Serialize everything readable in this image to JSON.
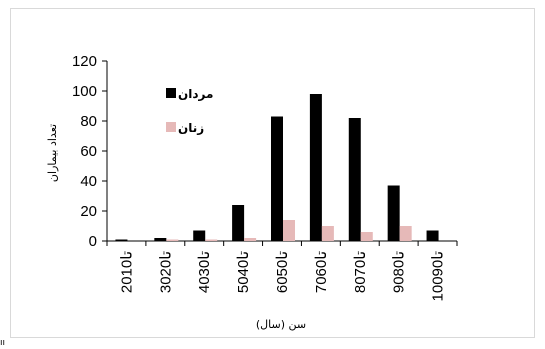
{
  "chart_data": {
    "type": "bar",
    "categories": [
      "20تا10",
      "30تا20",
      "40تا30",
      "50تا40",
      "60تا50",
      "70تا60",
      "80تا70",
      "90تا80",
      "100تا90"
    ],
    "series": [
      {
        "name": "مردان",
        "color": "#000000",
        "values": [
          1,
          2,
          7,
          24,
          83,
          98,
          82,
          37,
          7
        ]
      },
      {
        "name": "زنان",
        "color": "#e6b9b8",
        "values": [
          0,
          1,
          1,
          2,
          14,
          10,
          6,
          10,
          0
        ]
      }
    ],
    "yticks": [
      "0",
      "20",
      "40",
      "60",
      "80",
      "100",
      "120"
    ],
    "ylim": [
      0,
      120
    ],
    "xlabel": "سن (سال)",
    "ylabel": "تعداد بیماران",
    "legend_position": "top-left",
    "grid": false
  },
  "corner_mark": "ıı"
}
